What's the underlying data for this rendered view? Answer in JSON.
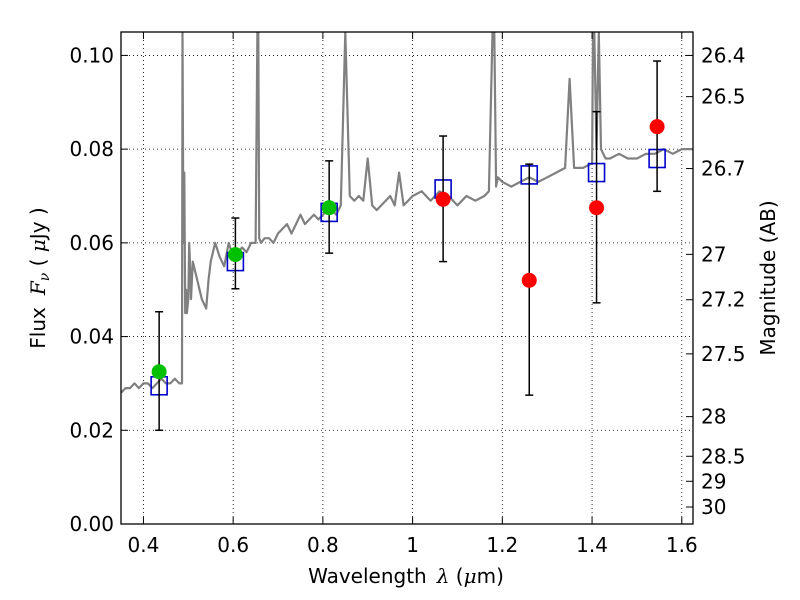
{
  "chart_data": {
    "type": "scatter",
    "title": "",
    "xlabel": "Wavelength",
    "xlabel_lambda": "λ",
    "xlabel_unit_open": " (",
    "xlabel_mu": "μ",
    "xlabel_unit_close": "m)",
    "ylabel": "Flux",
    "ylabel_symbol": "F",
    "ylabel_sub": "ν",
    "ylabel_unit_open": " ( ",
    "ylabel_mu": "μ",
    "ylabel_unit_close": "Jy )",
    "y2label": "Magnitude (AB)",
    "xlim": [
      0.35,
      1.625
    ],
    "ylim": [
      0.0,
      0.105
    ],
    "grid": true,
    "x_ticks": [
      {
        "value": 0.4,
        "label": "0.4"
      },
      {
        "value": 0.6,
        "label": "0.6"
      },
      {
        "value": 0.8,
        "label": "0.8"
      },
      {
        "value": 1.0,
        "label": "1"
      },
      {
        "value": 1.2,
        "label": "1.2"
      },
      {
        "value": 1.4,
        "label": "1.4"
      },
      {
        "value": 1.6,
        "label": "1.6"
      }
    ],
    "y_ticks": [
      {
        "value": 0.0,
        "label": "0.00"
      },
      {
        "value": 0.02,
        "label": "0.02"
      },
      {
        "value": 0.04,
        "label": "0.04"
      },
      {
        "value": 0.06,
        "label": "0.06"
      },
      {
        "value": 0.08,
        "label": "0.08"
      },
      {
        "value": 0.1,
        "label": "0.10"
      }
    ],
    "y2_ticks": [
      {
        "mag": 26.4,
        "label": "26.4"
      },
      {
        "mag": 26.5,
        "label": "26.5"
      },
      {
        "mag": 26.7,
        "label": "26.7"
      },
      {
        "mag": 27,
        "label": "27"
      },
      {
        "mag": 27.2,
        "label": "27.2"
      },
      {
        "mag": 27.5,
        "label": "27.5"
      },
      {
        "mag": 28,
        "label": "28"
      },
      {
        "mag": 28.5,
        "label": "28.5"
      },
      {
        "mag": 29,
        "label": "29"
      },
      {
        "mag": 30,
        "label": "30"
      }
    ],
    "model_spectrum": {
      "color": "#808080",
      "x": [
        0.35,
        0.36,
        0.37,
        0.38,
        0.39,
        0.4,
        0.41,
        0.42,
        0.43,
        0.44,
        0.45,
        0.46,
        0.47,
        0.48,
        0.486,
        0.487,
        0.489,
        0.491,
        0.493,
        0.495,
        0.497,
        0.5,
        0.502,
        0.504,
        0.506,
        0.508,
        0.51,
        0.52,
        0.53,
        0.54,
        0.545,
        0.55,
        0.56,
        0.57,
        0.58,
        0.59,
        0.6,
        0.61,
        0.62,
        0.63,
        0.64,
        0.65,
        0.654,
        0.656,
        0.658,
        0.662,
        0.67,
        0.68,
        0.69,
        0.7,
        0.71,
        0.72,
        0.73,
        0.74,
        0.75,
        0.76,
        0.77,
        0.78,
        0.79,
        0.8,
        0.81,
        0.82,
        0.83,
        0.84,
        0.85,
        0.86,
        0.87,
        0.88,
        0.89,
        0.9,
        0.91,
        0.92,
        0.93,
        0.94,
        0.95,
        0.96,
        0.97,
        0.98,
        0.99,
        1.0,
        1.02,
        1.04,
        1.06,
        1.08,
        1.1,
        1.12,
        1.14,
        1.16,
        1.17,
        1.178,
        1.182,
        1.186,
        1.19,
        1.2,
        1.22,
        1.24,
        1.26,
        1.28,
        1.3,
        1.32,
        1.34,
        1.35,
        1.36,
        1.38,
        1.4,
        1.402,
        1.405,
        1.41,
        1.415,
        1.42,
        1.43,
        1.44,
        1.46,
        1.48,
        1.5,
        1.52,
        1.54,
        1.56,
        1.58,
        1.6,
        1.625
      ],
      "y": [
        0.028,
        0.029,
        0.029,
        0.03,
        0.029,
        0.03,
        0.03,
        0.029,
        0.03,
        0.031,
        0.03,
        0.03,
        0.031,
        0.03,
        0.03,
        0.105,
        0.06,
        0.075,
        0.045,
        0.05,
        0.045,
        0.048,
        0.06,
        0.055,
        0.048,
        0.052,
        0.056,
        0.052,
        0.048,
        0.046,
        0.052,
        0.056,
        0.06,
        0.057,
        0.055,
        0.06,
        0.057,
        0.058,
        0.059,
        0.058,
        0.06,
        0.06,
        0.105,
        0.105,
        0.061,
        0.06,
        0.061,
        0.061,
        0.06,
        0.062,
        0.063,
        0.064,
        0.062,
        0.064,
        0.066,
        0.064,
        0.065,
        0.066,
        0.065,
        0.066,
        0.067,
        0.067,
        0.066,
        0.068,
        0.105,
        0.07,
        0.069,
        0.07,
        0.069,
        0.078,
        0.068,
        0.067,
        0.068,
        0.069,
        0.07,
        0.068,
        0.075,
        0.068,
        0.069,
        0.07,
        0.071,
        0.069,
        0.071,
        0.07,
        0.068,
        0.07,
        0.069,
        0.07,
        0.071,
        0.105,
        0.105,
        0.072,
        0.074,
        0.073,
        0.072,
        0.073,
        0.074,
        0.073,
        0.074,
        0.075,
        0.076,
        0.095,
        0.076,
        0.076,
        0.077,
        0.105,
        0.105,
        0.08,
        0.105,
        0.08,
        0.078,
        0.078,
        0.079,
        0.078,
        0.078,
        0.079,
        0.079,
        0.08,
        0.079,
        0.08,
        0.08
      ]
    },
    "series": [
      {
        "marker": "square",
        "color": "#0000cc",
        "x": [
          0.435,
          0.605,
          0.814,
          1.068,
          1.26,
          1.41,
          1.545
        ],
        "y": [
          0.0295,
          0.056,
          0.0665,
          0.0715,
          0.0745,
          0.075,
          0.078
        ]
      },
      {
        "marker": "circle",
        "color": "#00c000",
        "x": [
          0.435,
          0.605,
          0.814
        ],
        "y": [
          0.0325,
          0.0575,
          0.0675
        ],
        "yerr_low": [
          0.0125,
          0.0073,
          0.0097
        ],
        "yerr_high": [
          0.0128,
          0.0078,
          0.01
        ]
      },
      {
        "marker": "circle",
        "color": "#ff0000",
        "x": [
          1.068,
          1.26,
          1.41,
          1.545
        ],
        "y": [
          0.0693,
          0.052,
          0.0675,
          0.0848
        ],
        "yerr_low": [
          0.0133,
          0.0245,
          0.0203,
          0.0138
        ],
        "yerr_high": [
          0.0135,
          0.0248,
          0.0205,
          0.014
        ]
      }
    ]
  }
}
